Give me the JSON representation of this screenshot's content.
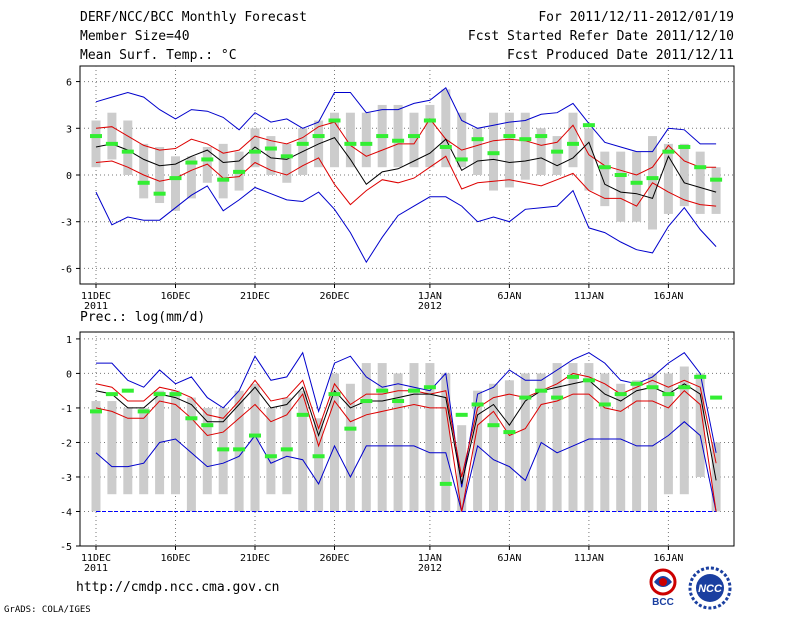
{
  "header": {
    "title": "DERF/NCC/BCC Monthly Forecast",
    "member": "Member Size=40",
    "variable": "Mean Surf. Temp.: °C",
    "period": "For 2011/12/11-2012/01/19",
    "started": "Fcst Started Refer Date 2011/12/10",
    "produced": "Fcst Produced Date 2011/12/11"
  },
  "footer": {
    "url": "http://cmdp.ncc.cma.gov.cn",
    "credit": "GrADS: COLA/IGES",
    "logo_bcc": "BCC",
    "logo_ncc": "NCC"
  },
  "colors": {
    "envelope": "#0000cc",
    "spread": "#dd0000",
    "mean": "#000000",
    "median": "#33ee33",
    "box": "#cccccc",
    "floor": "#0000ff"
  },
  "chart_data": [
    {
      "type": "box-line",
      "title": "Mean Surf. Temp.: °C",
      "ylim": [
        -7,
        7
      ],
      "yticks": [
        6,
        3,
        0,
        -3,
        -6
      ],
      "x_days": 40,
      "xtick_labels": [
        {
          "day": 0,
          "label": "11DEC",
          "sub": "2011"
        },
        {
          "day": 5,
          "label": "16DEC"
        },
        {
          "day": 10,
          "label": "21DEC"
        },
        {
          "day": 15,
          "label": "26DEC"
        },
        {
          "day": 21,
          "label": "1JAN",
          "sub": "2012"
        },
        {
          "day": 26,
          "label": "6JAN"
        },
        {
          "day": 31,
          "label": "11JAN"
        },
        {
          "day": 36,
          "label": "16JAN"
        }
      ],
      "max": [
        4.7,
        5.0,
        5.3,
        5.0,
        4.2,
        3.6,
        4.2,
        4.1,
        3.7,
        2.9,
        4.0,
        3.4,
        3.6,
        3.0,
        3.4,
        5.3,
        5.3,
        4.0,
        4.2,
        4.2,
        4.6,
        4.8,
        5.6,
        3.5,
        3.0,
        3.2,
        3.4,
        3.5,
        3.9,
        4.0,
        4.6,
        3.3,
        2.1,
        1.8,
        1.5,
        1.5,
        3.0,
        2.9,
        2.0,
        2.0
      ],
      "upper": [
        3.0,
        3.1,
        2.5,
        1.9,
        1.6,
        1.7,
        2.3,
        2.0,
        1.4,
        1.6,
        2.5,
        2.2,
        2.0,
        2.4,
        3.1,
        3.4,
        1.9,
        1.2,
        1.6,
        2.0,
        2.0,
        3.6,
        2.3,
        1.6,
        1.9,
        2.2,
        2.3,
        2.2,
        1.9,
        2.1,
        3.2,
        1.3,
        0.6,
        0.3,
        0.0,
        0.5,
        1.9,
        0.9,
        0.5,
        0.5
      ],
      "mean": [
        1.8,
        2.0,
        1.6,
        1.0,
        0.6,
        0.7,
        1.2,
        1.6,
        0.8,
        0.9,
        1.8,
        1.1,
        1.0,
        1.5,
        2.0,
        2.4,
        1.0,
        -0.6,
        0.2,
        0.4,
        0.9,
        1.4,
        2.3,
        0.3,
        0.9,
        1.0,
        0.8,
        0.9,
        1.1,
        0.6,
        1.1,
        2.1,
        -0.6,
        -1.1,
        -1.2,
        -1.5,
        1.2,
        -0.5,
        -0.8,
        -1.1
      ],
      "lower": [
        0.8,
        0.9,
        0.5,
        0.0,
        -0.4,
        -0.2,
        0.3,
        0.7,
        -0.2,
        -0.1,
        0.8,
        0.3,
        0.0,
        0.6,
        1.1,
        -0.6,
        -1.9,
        -1.0,
        -0.3,
        -0.5,
        -0.2,
        0.5,
        1.2,
        -0.9,
        -0.5,
        -0.4,
        -0.3,
        -0.5,
        -0.7,
        -0.3,
        0.1,
        -1.0,
        -1.5,
        -1.5,
        -2.0,
        -0.5,
        -1.1,
        -1.6,
        -1.9,
        -2.0
      ],
      "min": [
        -1.1,
        -3.2,
        -2.7,
        -2.9,
        -2.9,
        -2.1,
        -1.3,
        -0.7,
        -2.3,
        -1.6,
        -0.8,
        -1.2,
        -1.6,
        -1.7,
        -1.1,
        -2.2,
        -3.7,
        -5.6,
        -4.0,
        -2.6,
        -2.0,
        -1.4,
        -1.4,
        -2.0,
        -3.0,
        -2.7,
        -3.0,
        -2.2,
        -2.1,
        -2.0,
        -1.0,
        -3.4,
        -3.7,
        -4.3,
        -4.8,
        -5.0,
        -3.3,
        -2.1,
        -3.5,
        -4.6
      ],
      "box_hi": [
        3.5,
        4.0,
        3.5,
        2.0,
        1.8,
        1.2,
        1.2,
        1.8,
        2.0,
        1.5,
        3.0,
        2.5,
        2.0,
        3.0,
        3.5,
        4.0,
        4.0,
        4.0,
        4.5,
        4.5,
        4.0,
        4.5,
        5.5,
        4.0,
        3.0,
        4.0,
        4.0,
        4.0,
        3.0,
        2.5,
        4.0,
        3.0,
        1.5,
        1.5,
        1.5,
        2.5,
        2.0,
        2.0,
        1.5,
        0.5
      ],
      "box_lo": [
        0.5,
        1.0,
        0.0,
        -1.5,
        -1.8,
        -2.3,
        -1.5,
        -0.5,
        -1.5,
        -1.0,
        0.5,
        0.0,
        -0.5,
        0.0,
        0.5,
        0.5,
        0.5,
        0.5,
        0.5,
        0.5,
        0.5,
        0.5,
        0.5,
        0.5,
        0.0,
        -1.0,
        -0.8,
        -0.3,
        0.0,
        0.0,
        0.5,
        -1.0,
        -2.0,
        -3.0,
        -3.0,
        -3.5,
        -2.5,
        -2.0,
        -2.5,
        -2.5
      ],
      "median": [
        2.5,
        2.0,
        1.5,
        -0.5,
        -1.2,
        -0.2,
        0.8,
        1.0,
        -0.3,
        0.2,
        1.5,
        1.7,
        1.2,
        2.0,
        2.5,
        3.5,
        2.0,
        2.0,
        2.5,
        2.2,
        2.5,
        3.5,
        1.8,
        1.0,
        2.3,
        1.4,
        2.5,
        2.3,
        2.5,
        1.5,
        2.0,
        3.2,
        0.5,
        0.0,
        -0.5,
        -0.2,
        1.5,
        1.8,
        0.5,
        -0.3
      ]
    },
    {
      "type": "box-line",
      "title": "Prec.: log(mm/d)",
      "ylim": [
        -5,
        1.2
      ],
      "yticks": [
        1,
        0,
        -1,
        -2,
        -3,
        -4,
        -5
      ],
      "floor": -4,
      "x_days": 40,
      "xtick_labels": [
        {
          "day": 0,
          "label": "11DEC",
          "sub": "2011"
        },
        {
          "day": 5,
          "label": "16DEC"
        },
        {
          "day": 10,
          "label": "21DEC"
        },
        {
          "day": 15,
          "label": "26DEC"
        },
        {
          "day": 21,
          "label": "1JAN",
          "sub": "2012"
        },
        {
          "day": 26,
          "label": "6JAN"
        },
        {
          "day": 31,
          "label": "11JAN"
        },
        {
          "day": 36,
          "label": "16JAN"
        }
      ],
      "max": [
        0.3,
        0.3,
        -0.2,
        -0.4,
        0.1,
        -0.3,
        -0.1,
        -0.7,
        -1.0,
        -0.5,
        0.5,
        -0.2,
        -0.1,
        0.6,
        -1.1,
        0.3,
        0.5,
        -0.1,
        -0.4,
        -0.3,
        -0.4,
        -0.5,
        0.0,
        -3.3,
        -0.6,
        -0.4,
        0.1,
        -0.2,
        -0.2,
        0.1,
        0.4,
        0.6,
        0.3,
        -0.2,
        -0.3,
        -0.1,
        0.3,
        0.6,
        0.0,
        -2.3
      ],
      "upper": [
        -0.3,
        -0.4,
        -0.8,
        -0.8,
        -0.4,
        -0.5,
        -0.7,
        -1.2,
        -1.3,
        -0.8,
        -0.2,
        -0.8,
        -0.7,
        -0.2,
        -1.6,
        -0.3,
        -0.9,
        -0.6,
        -0.6,
        -0.5,
        -0.5,
        -0.6,
        -0.5,
        -3.0,
        -1.0,
        -0.7,
        -0.6,
        -0.7,
        -0.5,
        -0.3,
        0.0,
        -0.1,
        -0.3,
        -0.6,
        -0.4,
        -0.2,
        -0.4,
        -0.2,
        -0.4,
        -2.6
      ],
      "mean": [
        -0.5,
        -0.6,
        -1.0,
        -1.0,
        -0.6,
        -0.7,
        -0.9,
        -1.4,
        -1.4,
        -0.9,
        -0.4,
        -1.0,
        -0.9,
        -0.4,
        -1.8,
        -0.5,
        -1.0,
        -0.8,
        -0.8,
        -0.7,
        -0.6,
        -0.6,
        -0.7,
        -3.2,
        -1.2,
        -0.9,
        -1.5,
        -0.8,
        -0.5,
        -0.4,
        -0.3,
        -0.2,
        -0.6,
        -0.8,
        -0.5,
        -0.4,
        -0.6,
        -0.3,
        -0.6,
        -3.1
      ],
      "lower": [
        -1.0,
        -1.1,
        -1.3,
        -1.3,
        -0.8,
        -0.9,
        -1.3,
        -1.8,
        -1.7,
        -1.3,
        -0.9,
        -1.4,
        -1.2,
        -0.6,
        -2.1,
        -0.8,
        -1.4,
        -1.2,
        -1.1,
        -1.0,
        -0.9,
        -1.0,
        -1.0,
        -4.0,
        -1.5,
        -1.1,
        -1.8,
        -1.6,
        -0.9,
        -0.8,
        -0.6,
        -0.6,
        -1.0,
        -1.1,
        -0.8,
        -0.8,
        -1.0,
        -0.5,
        -0.9,
        -4.0
      ],
      "min": [
        -2.3,
        -2.7,
        -2.7,
        -2.6,
        -2.0,
        -1.9,
        -2.3,
        -2.7,
        -2.6,
        -2.4,
        -1.8,
        -2.6,
        -2.4,
        -2.5,
        -3.2,
        -2.1,
        -3.0,
        -2.1,
        -2.1,
        -2.1,
        -2.1,
        -2.3,
        -2.3,
        -4.0,
        -2.1,
        -2.5,
        -2.7,
        -3.1,
        -2.0,
        -2.3,
        -2.1,
        -1.9,
        -1.9,
        -1.9,
        -2.1,
        -2.1,
        -1.8,
        -1.4,
        -1.8,
        -4.0
      ],
      "box_hi": [
        -0.8,
        -0.8,
        -1.0,
        -1.0,
        -0.5,
        -0.5,
        -0.7,
        -1.0,
        -1.0,
        -0.5,
        -0.3,
        -1.0,
        -0.7,
        -0.5,
        -1.3,
        0.0,
        -0.3,
        0.3,
        0.3,
        0.0,
        0.3,
        0.3,
        0.0,
        -1.5,
        -0.5,
        -0.3,
        -0.2,
        0.0,
        0.0,
        0.3,
        0.3,
        0.3,
        0.0,
        -0.3,
        -0.2,
        0.0,
        0.0,
        0.2,
        0.0,
        -2.0
      ],
      "box_lo": [
        -4.0,
        -3.5,
        -3.5,
        -3.5,
        -3.5,
        -3.5,
        -4.0,
        -3.5,
        -3.5,
        -4.0,
        -4.0,
        -3.5,
        -3.5,
        -4.0,
        -4.0,
        -4.0,
        -4.0,
        -4.0,
        -4.0,
        -4.0,
        -4.0,
        -4.0,
        -4.0,
        -4.0,
        -4.0,
        -4.0,
        -4.0,
        -4.0,
        -4.0,
        -4.0,
        -4.0,
        -4.0,
        -4.0,
        -4.0,
        -4.0,
        -4.0,
        -3.5,
        -3.5,
        -3.0,
        -4.0
      ],
      "median": [
        -1.1,
        -0.6,
        -0.5,
        -1.1,
        -0.6,
        -0.6,
        -1.3,
        -1.5,
        -2.2,
        -2.2,
        -1.8,
        -2.4,
        -2.2,
        -1.2,
        -2.4,
        -0.6,
        -1.6,
        -0.8,
        -0.5,
        -0.8,
        -0.5,
        -0.4,
        -3.2,
        -1.2,
        -0.9,
        -1.5,
        -1.7,
        -0.7,
        -0.5,
        -0.7,
        -0.1,
        -0.2,
        -0.9,
        -0.6,
        -0.3,
        -0.4,
        -0.6,
        -0.4,
        -0.1,
        -0.7
      ]
    }
  ]
}
